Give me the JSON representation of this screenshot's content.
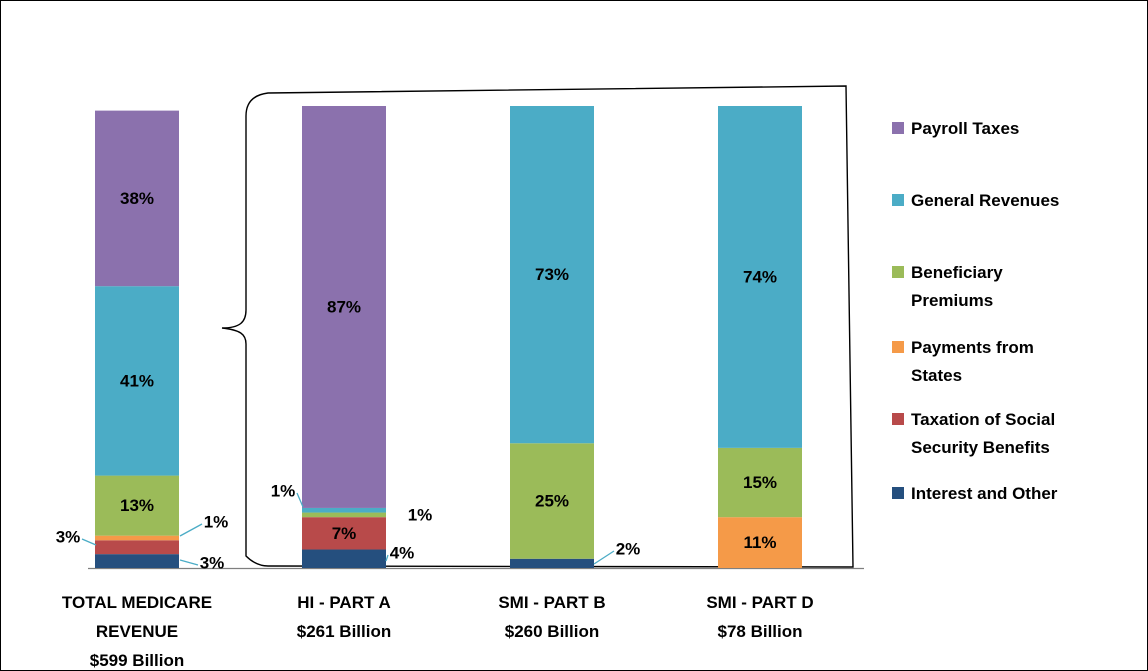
{
  "chart_data": {
    "type": "bar",
    "stacked": true,
    "normalized": true,
    "categories": [
      [
        "TOTAL MEDICARE",
        "REVENUE",
        "$599 Billion"
      ],
      [
        "HI - PART A",
        "$261 Billion"
      ],
      [
        "SMI - PART B",
        "$260 Billion"
      ],
      [
        "SMI - PART D",
        "$78 Billion"
      ]
    ],
    "series": [
      {
        "name": "Interest and Other",
        "color": "#254F7E",
        "values": [
          3,
          4,
          2,
          0
        ],
        "labels": [
          "3%",
          "4%",
          "2%",
          ""
        ]
      },
      {
        "name": "Taxation of Social Security Benefits",
        "color": "#B84A4A",
        "values": [
          3,
          7,
          0,
          0
        ],
        "labels": [
          "3%",
          "7%",
          "",
          ""
        ]
      },
      {
        "name": "Payments from States",
        "color": "#F59A48",
        "values": [
          1,
          0,
          0,
          11
        ],
        "labels": [
          "1%",
          "",
          "",
          "11%"
        ]
      },
      {
        "name": "Beneficiary Premiums",
        "color": "#9BBB59",
        "values": [
          13,
          1,
          25,
          15
        ],
        "labels": [
          "13%",
          "1%",
          "25%",
          "15%"
        ]
      },
      {
        "name": "General Revenues",
        "color": "#4BACC6",
        "values": [
          41,
          1,
          73,
          74
        ],
        "labels": [
          "41%",
          "1%",
          "73%",
          "74%"
        ]
      },
      {
        "name": "Payroll Taxes",
        "color": "#8B71AD",
        "values": [
          38,
          87,
          0,
          0
        ],
        "labels": [
          "38%",
          "87%",
          "",
          ""
        ]
      }
    ],
    "legend_order": [
      "Payroll Taxes",
      "General Revenues",
      "Beneficiary Premiums",
      "Payments from States",
      "Taxation of Social Security Benefits",
      "Interest and Other"
    ],
    "legend_lines": [
      [
        "Payroll Taxes"
      ],
      [
        "General Revenues"
      ],
      [
        "Beneficiary",
        "Premiums"
      ],
      [
        "Payments from",
        "States"
      ],
      [
        "Taxation of Social",
        "Security Benefits"
      ],
      [
        "Interest and Other"
      ]
    ],
    "ylim": [
      0,
      100
    ],
    "grid": false,
    "legend_position": "right"
  }
}
